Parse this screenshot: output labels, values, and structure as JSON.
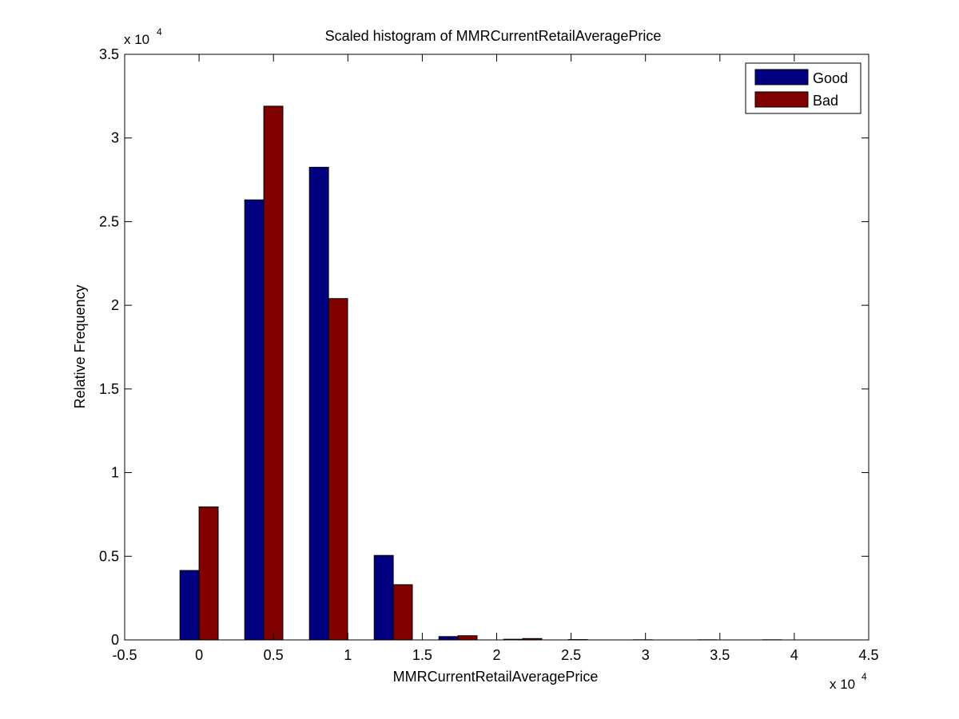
{
  "chart_data": {
    "type": "bar",
    "title": "Scaled histogram of MMRCurrentRetailAveragePrice",
    "xlabel": "MMRCurrentRetailAveragePrice",
    "ylabel": "Relative Frequency",
    "x_exponent_label": "x 10",
    "x_exponent_power": "4",
    "y_exponent_label": "x 10",
    "y_exponent_power": "4",
    "xlim": [
      -0.5,
      4.5
    ],
    "ylim": [
      0,
      3.5
    ],
    "xticks": [
      "-0.5",
      "0",
      "0.5",
      "1",
      "1.5",
      "2",
      "2.5",
      "3",
      "3.5",
      "4",
      "4.5"
    ],
    "yticks": [
      "0",
      "0.5",
      "1",
      "1.5",
      "2",
      "2.5",
      "3",
      "3.5"
    ],
    "grid": false,
    "legend_position": "top-right",
    "bin_centers": [
      0.0,
      0.435,
      0.87,
      1.305,
      1.74,
      2.175,
      2.61,
      3.045,
      3.48,
      3.915
    ],
    "series": [
      {
        "name": "Good",
        "color": "#000080",
        "values": [
          0.415,
          2.63,
          2.825,
          0.505,
          0.02,
          0.004,
          0.002,
          0.001,
          0.001,
          0.001
        ]
      },
      {
        "name": "Bad",
        "color": "#800000",
        "values": [
          0.795,
          3.19,
          2.04,
          0.33,
          0.025,
          0.008,
          0.0,
          0.0,
          0.0,
          0.0
        ]
      }
    ]
  }
}
